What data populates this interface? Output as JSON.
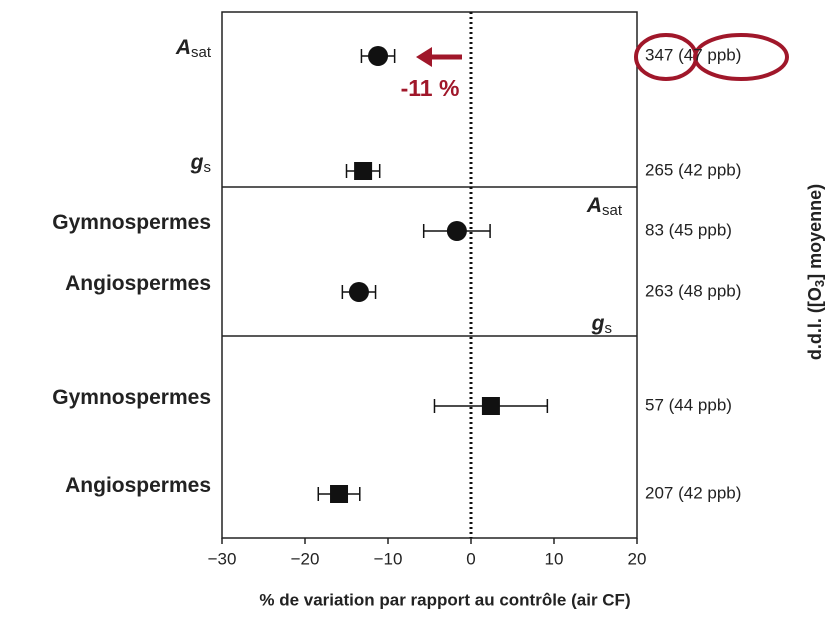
{
  "chart_data": {
    "type": "forest",
    "xlabel": "% de variation par rapport au contrôle (air CF)",
    "y2label": {
      "before": "d.d.l. ([O",
      "sub": "3",
      "after": "] moyenne)"
    },
    "xlim": [
      -30,
      20
    ],
    "xticks": [
      {
        "value": -30,
        "label": "−30"
      },
      {
        "value": -20,
        "label": "−20"
      },
      {
        "value": -10,
        "label": "−10"
      },
      0,
      10,
      20
    ],
    "reference_line": 0,
    "rows": [
      {
        "label": "A",
        "label_sub": "sat",
        "marker": "circle",
        "value": -11.2,
        "error": 2,
        "right_label": "347 (47 ppb)"
      },
      {
        "label": "g",
        "label_sub": "s",
        "marker": "square",
        "value": -13,
        "error": 2,
        "right_label": "265 (42 ppb)"
      },
      {
        "label": "Gymnospermes",
        "marker": "circle",
        "value": -1.7,
        "error": 4,
        "right_label": "83 (45 ppb)"
      },
      {
        "label": "Angiospermes",
        "marker": "circle",
        "value": -13.5,
        "error": 2,
        "right_label": "263 (48 ppb)"
      },
      {
        "label": "Gymnospermes",
        "marker": "square",
        "value": 2.4,
        "error": 6.8,
        "right_label": "57 (44 ppb)"
      },
      {
        "label": "Angiospermes",
        "marker": "square",
        "value": -15.9,
        "error": 2.5,
        "right_label": "207 (42 ppb)"
      }
    ],
    "section_labels": [
      {
        "label": "A",
        "label_sub": "sat"
      },
      {
        "label": "g",
        "label_sub": "s"
      }
    ],
    "annotation": "-11 %"
  }
}
